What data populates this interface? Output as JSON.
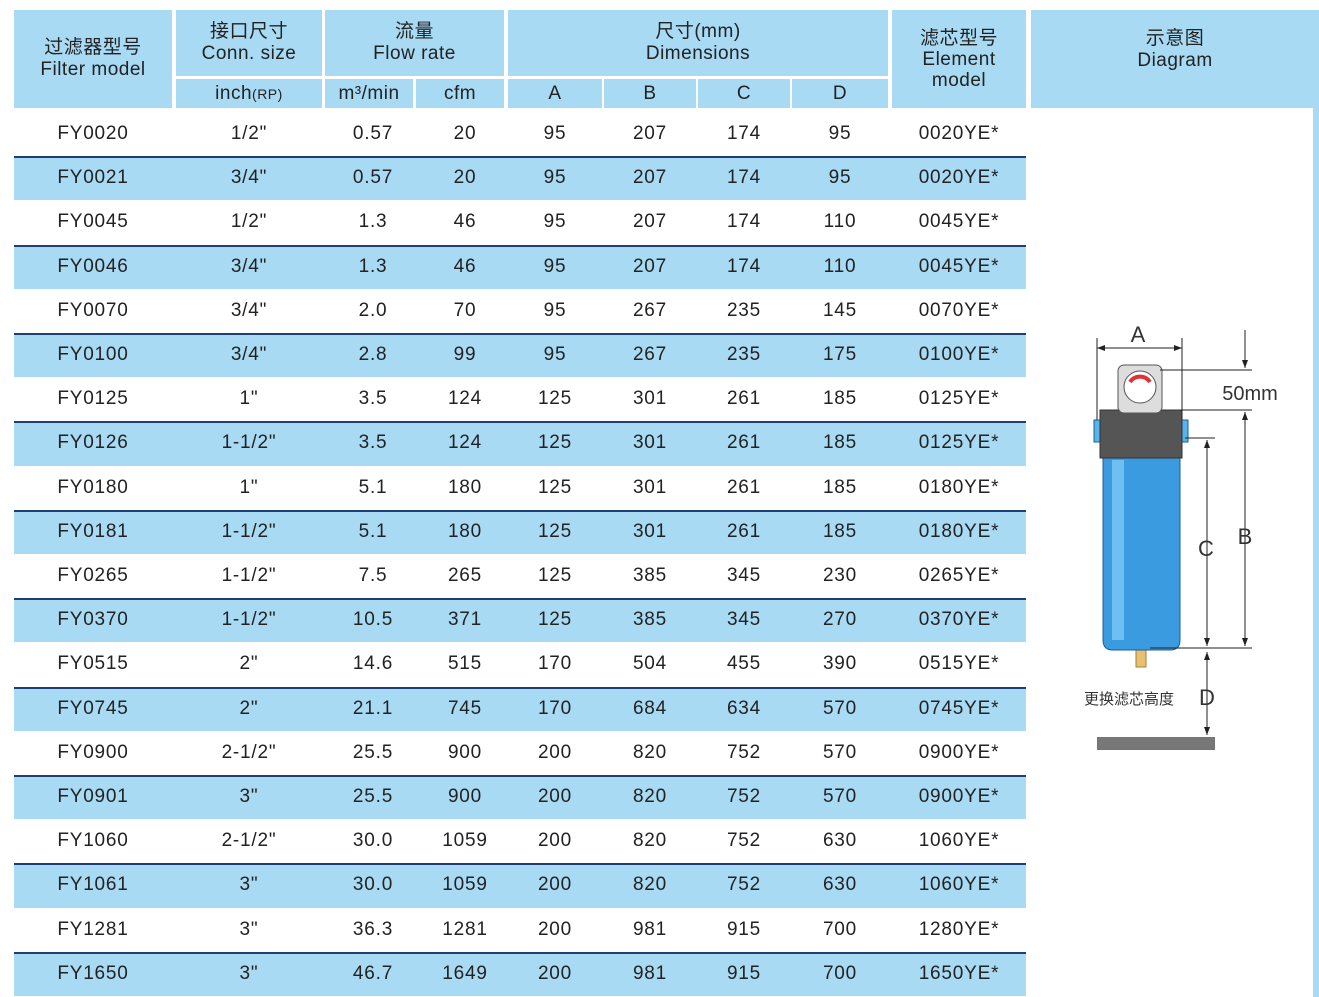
{
  "header": {
    "model": {
      "zh": "过滤器型号",
      "en": "Filter model"
    },
    "conn": {
      "zh": "接口尺寸",
      "en": "Conn. size",
      "unit": "inch",
      "unit_sub": "(RP)"
    },
    "flow": {
      "zh": "流量",
      "en": "Flow rate",
      "m3": "m³/min",
      "cfm": "cfm"
    },
    "dims": {
      "zh": "尺寸(mm)",
      "en": "Dimensions",
      "cols": [
        "A",
        "B",
        "C",
        "D"
      ]
    },
    "element": {
      "zh": "滤芯型号",
      "en": "Element",
      "en2": "model"
    },
    "diagram": {
      "zh": "示意图",
      "en": "Diagram"
    }
  },
  "table": {
    "rows": [
      [
        "FY0020",
        "1/2\"",
        "0.57",
        "20",
        "95",
        "207",
        "174",
        "95",
        "0020YE*"
      ],
      [
        "FY0021",
        "3/4\"",
        "0.57",
        "20",
        "95",
        "207",
        "174",
        "95",
        "0020YE*"
      ],
      [
        "FY0045",
        "1/2\"",
        "1.3",
        "46",
        "95",
        "207",
        "174",
        "110",
        "0045YE*"
      ],
      [
        "FY0046",
        "3/4\"",
        "1.3",
        "46",
        "95",
        "207",
        "174",
        "110",
        "0045YE*"
      ],
      [
        "FY0070",
        "3/4\"",
        "2.0",
        "70",
        "95",
        "267",
        "235",
        "145",
        "0070YE*"
      ],
      [
        "FY0100",
        "3/4\"",
        "2.8",
        "99",
        "95",
        "267",
        "235",
        "175",
        "0100YE*"
      ],
      [
        "FY0125",
        "1\"",
        "3.5",
        "124",
        "125",
        "301",
        "261",
        "185",
        "0125YE*"
      ],
      [
        "FY0126",
        "1-1/2\"",
        "3.5",
        "124",
        "125",
        "301",
        "261",
        "185",
        "0125YE*"
      ],
      [
        "FY0180",
        "1\"",
        "5.1",
        "180",
        "125",
        "301",
        "261",
        "185",
        "0180YE*"
      ],
      [
        "FY0181",
        "1-1/2\"",
        "5.1",
        "180",
        "125",
        "301",
        "261",
        "185",
        "0180YE*"
      ],
      [
        "FY0265",
        "1-1/2\"",
        "7.5",
        "265",
        "125",
        "385",
        "345",
        "230",
        "0265YE*"
      ],
      [
        "FY0370",
        "1-1/2\"",
        "10.5",
        "371",
        "125",
        "385",
        "345",
        "270",
        "0370YE*"
      ],
      [
        "FY0515",
        "2\"",
        "14.6",
        "515",
        "170",
        "504",
        "455",
        "390",
        "0515YE*"
      ],
      [
        "FY0745",
        "2\"",
        "21.1",
        "745",
        "170",
        "684",
        "634",
        "570",
        "0745YE*"
      ],
      [
        "FY0900",
        "2-1/2\"",
        "25.5",
        "900",
        "200",
        "820",
        "752",
        "570",
        "0900YE*"
      ],
      [
        "FY0901",
        "3\"",
        "25.5",
        "900",
        "200",
        "820",
        "752",
        "570",
        "0900YE*"
      ],
      [
        "FY1060",
        "2-1/2\"",
        "30.0",
        "1059",
        "200",
        "820",
        "752",
        "630",
        "1060YE*"
      ],
      [
        "FY1061",
        "3\"",
        "30.0",
        "1059",
        "200",
        "820",
        "752",
        "630",
        "1060YE*"
      ],
      [
        "FY1281",
        "3\"",
        "36.3",
        "1281",
        "200",
        "981",
        "915",
        "700",
        "1280YE*"
      ],
      [
        "FY1650",
        "3\"",
        "46.7",
        "1649",
        "200",
        "981",
        "915",
        "700",
        "1650YE*"
      ]
    ]
  },
  "diagram": {
    "a": "A",
    "top": "50mm",
    "c": "C",
    "b": "B",
    "note": "更换滤芯高度",
    "d": "D"
  }
}
